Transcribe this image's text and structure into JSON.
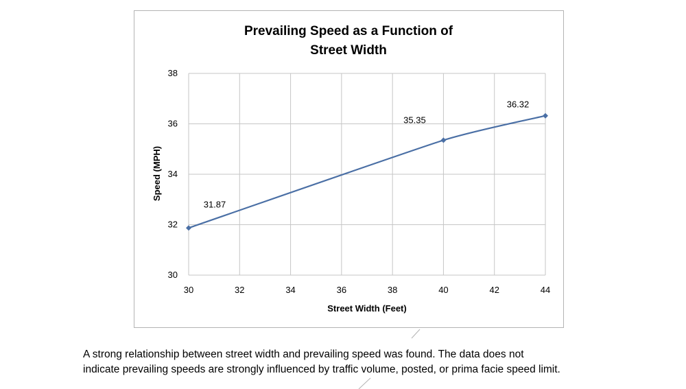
{
  "chart_data": {
    "type": "line",
    "title": [
      "Prevailing Speed as a Function of",
      "Street Width"
    ],
    "xlabel": "Street Width (Feet)",
    "ylabel": "Speed (MPH)",
    "xlim": [
      30,
      44
    ],
    "ylim": [
      30,
      38
    ],
    "xticks": [
      30,
      32,
      34,
      36,
      38,
      40,
      42,
      44
    ],
    "yticks": [
      30,
      32,
      34,
      36,
      38
    ],
    "grid": true,
    "smooth": true,
    "series": [
      {
        "x": [
          30,
          40,
          44
        ],
        "y": [
          31.87,
          35.35,
          36.32
        ],
        "labels": [
          "31.87",
          "35.35",
          "36.32"
        ],
        "color": "#4a6fa5"
      }
    ]
  },
  "caption": {
    "line1": "A strong relationship between street width and prevailing speed was found. The data does not",
    "line2": "indicate prevailing speeds are strongly influenced by traffic volume, posted, or prima facie speed limit."
  }
}
